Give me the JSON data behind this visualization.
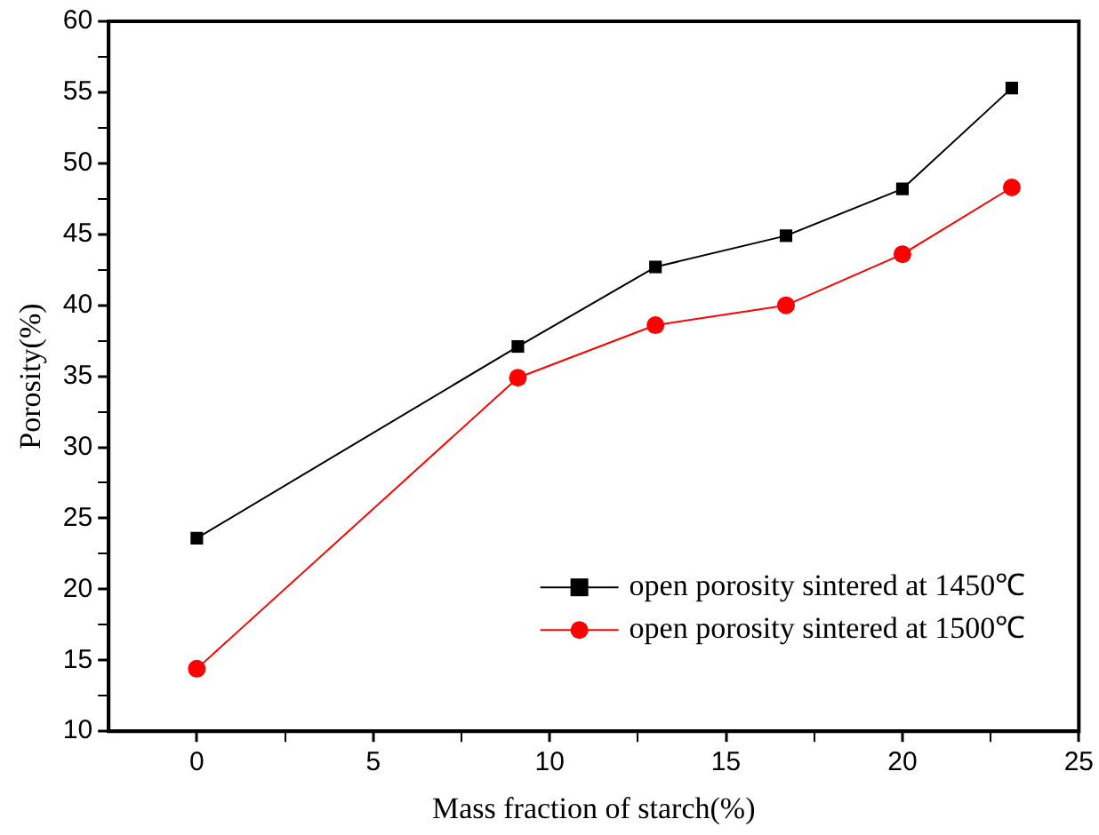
{
  "chart_data": {
    "type": "line",
    "xlabel": "Mass fraction of starch(%)",
    "ylabel": "Porosity(%)",
    "xlim": [
      -2.5,
      25
    ],
    "xticks": [
      0,
      {
        "value": 2.5,
        "label": null
      },
      5,
      {
        "value": 7.5,
        "label": null
      },
      10,
      {
        "value": 12.5,
        "label": null
      },
      15,
      {
        "value": 17.5,
        "label": null
      },
      20,
      {
        "value": 22.5,
        "label": null
      },
      25
    ],
    "ylim": [
      10,
      60
    ],
    "yticks": [
      10,
      {
        "value": 12.5,
        "label": null
      },
      15,
      {
        "value": 17.5,
        "label": null
      },
      20,
      {
        "value": 22.5,
        "label": null
      },
      25,
      {
        "value": 27.5,
        "label": null
      },
      30,
      {
        "value": 32.5,
        "label": null
      },
      35,
      {
        "value": 37.5,
        "label": null
      },
      40,
      {
        "value": 42.5,
        "label": null
      },
      45,
      {
        "value": 47.5,
        "label": null
      },
      50,
      {
        "value": 52.5,
        "label": null
      },
      55,
      {
        "value": 57.5,
        "label": null
      },
      60
    ],
    "x": [
      0,
      9.1,
      13.0,
      16.7,
      20.0,
      23.1
    ],
    "series": [
      {
        "name": "open porosity sintered at 1450℃",
        "color": "#000000",
        "marker": "square",
        "values": [
          23.6,
          37.1,
          42.7,
          44.9,
          48.2,
          55.3
        ]
      },
      {
        "name": "open porosity sintered at 1500℃",
        "color": "#ff0000",
        "marker": "circle",
        "values": [
          14.4,
          34.9,
          38.6,
          40.0,
          43.6,
          48.3
        ]
      }
    ],
    "legend": "bottom right",
    "grid": false
  }
}
